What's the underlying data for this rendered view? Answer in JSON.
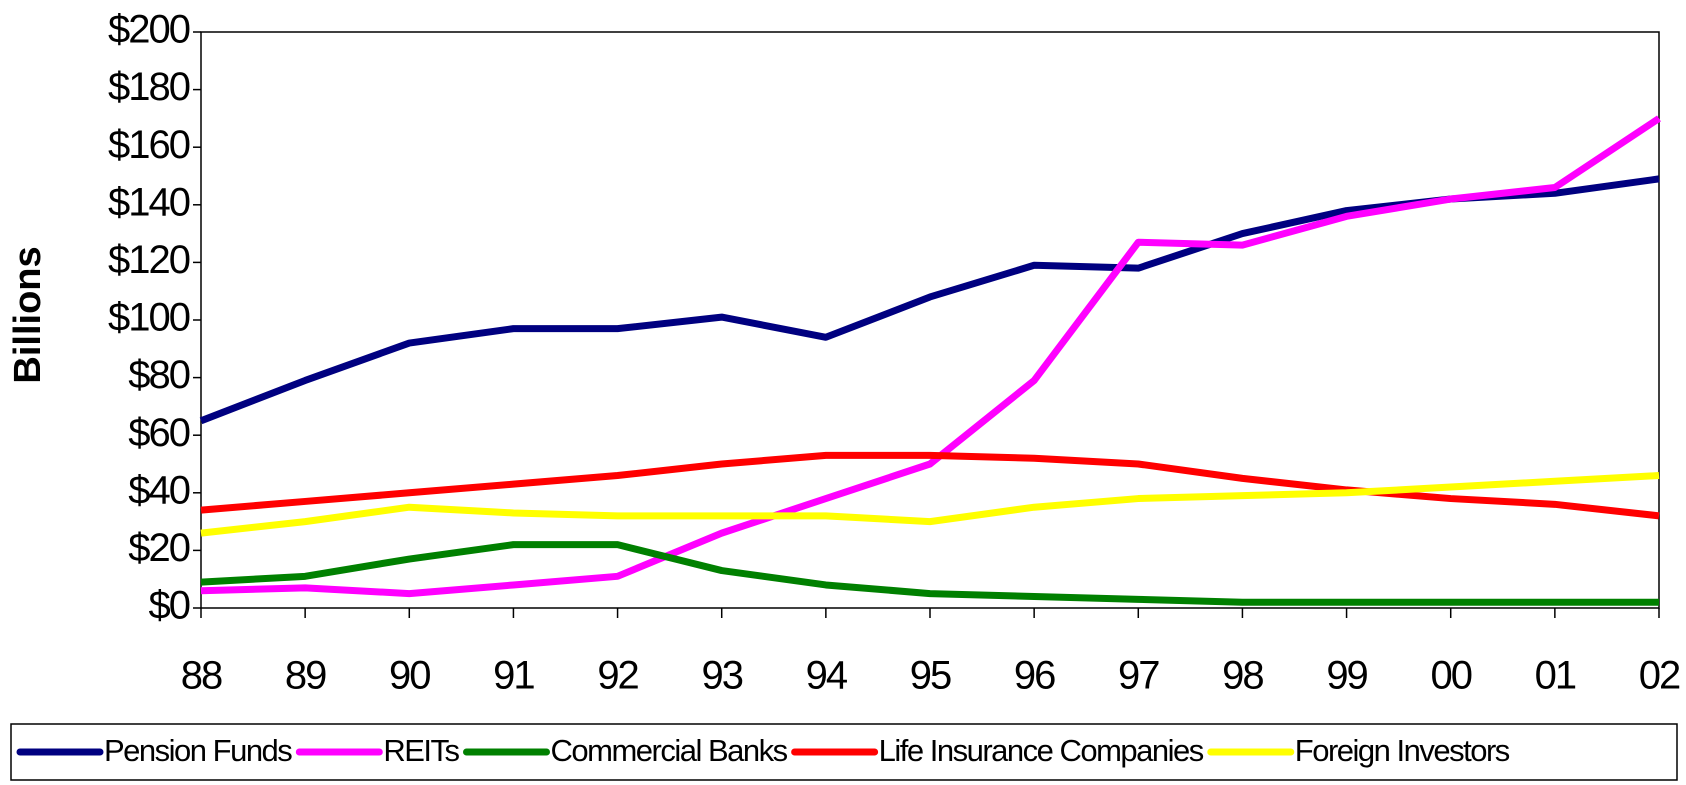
{
  "chart_data": {
    "type": "line",
    "y_label": "Billions",
    "categories": [
      "88",
      "89",
      "90",
      "91",
      "92",
      "93",
      "94",
      "95",
      "96",
      "97",
      "98",
      "99",
      "00",
      "01",
      "02"
    ],
    "series": [
      {
        "name": "Pension Funds",
        "color": "#000080",
        "values": [
          65,
          79,
          92,
          97,
          97,
          101,
          94,
          108,
          119,
          118,
          130,
          138,
          142,
          144,
          149
        ]
      },
      {
        "name": "REITs",
        "color": "#ff00ff",
        "values": [
          6,
          7,
          5,
          8,
          11,
          26,
          38,
          50,
          79,
          127,
          126,
          136,
          142,
          146,
          170
        ]
      },
      {
        "name": "Commercial Banks",
        "color": "#008000",
        "values": [
          9,
          11,
          17,
          22,
          22,
          13,
          8,
          5,
          4,
          3,
          2,
          2,
          2,
          2,
          2
        ]
      },
      {
        "name": "Life Insurance Companies",
        "color": "#ff0000",
        "values": [
          34,
          37,
          40,
          43,
          46,
          50,
          53,
          53,
          52,
          50,
          45,
          41,
          38,
          36,
          32
        ]
      },
      {
        "name": "Foreign Investors",
        "color": "#ffff00",
        "values": [
          26,
          30,
          35,
          33,
          32,
          32,
          32,
          30,
          35,
          38,
          39,
          40,
          42,
          44,
          46
        ]
      }
    ],
    "ylim": [
      0,
      200
    ],
    "yticks": [
      {
        "value": 0,
        "label": "$0"
      },
      {
        "value": 20,
        "label": "$20"
      },
      {
        "value": 40,
        "label": "$40"
      },
      {
        "value": 60,
        "label": "$60"
      },
      {
        "value": 80,
        "label": "$80"
      },
      {
        "value": 100,
        "label": "$100"
      },
      {
        "value": 120,
        "label": "$120"
      },
      {
        "value": 140,
        "label": "$140"
      },
      {
        "value": 160,
        "label": "$160"
      },
      {
        "value": 180,
        "label": "$180"
      },
      {
        "value": 200,
        "label": "$200"
      }
    ],
    "legend": "bottom"
  }
}
